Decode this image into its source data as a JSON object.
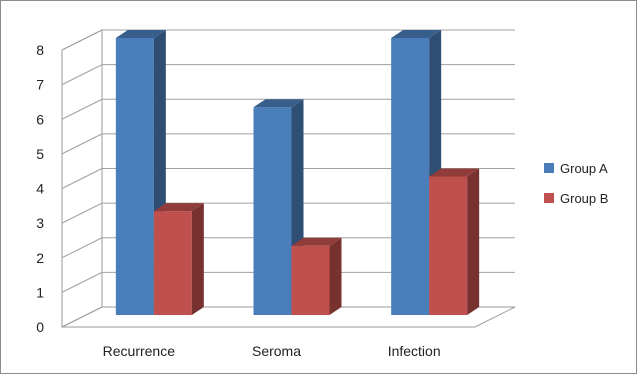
{
  "chart_data": {
    "type": "bar",
    "categories": [
      "Recurrence",
      "Seroma",
      "Infection"
    ],
    "series": [
      {
        "name": "Group A",
        "values": [
          8,
          6,
          8
        ],
        "color": "#4a7ebb"
      },
      {
        "name": "Group B",
        "values": [
          3,
          2,
          4
        ],
        "color": "#c0504d"
      }
    ],
    "ylim": [
      0,
      8
    ],
    "yticks": [
      "0",
      "1",
      "2",
      "3",
      "4",
      "5",
      "6",
      "7",
      "8"
    ],
    "grid": true,
    "legend_position": "right",
    "style": "3d-clustered-column"
  }
}
